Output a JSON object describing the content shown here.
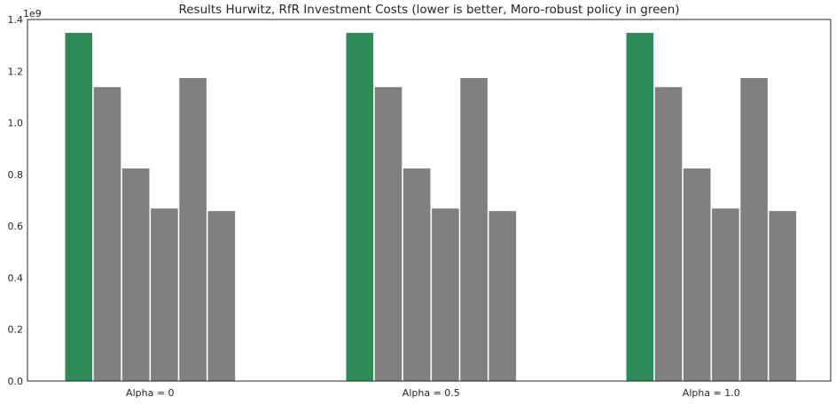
{
  "chart_data": {
    "type": "bar",
    "title": "Results Hurwitz, RfR Investment Costs (lower is better, Moro-robust policy in green)",
    "xlabel": "",
    "ylabel": "",
    "y_offset_label": "1e9",
    "categories": [
      "Alpha = 0",
      "Alpha = 0.5",
      "Alpha = 1.0"
    ],
    "series": [
      {
        "color": "#2e8b57",
        "values": [
          1.35,
          1.35,
          1.35
        ]
      },
      {
        "color": "#808080",
        "values": [
          1.14,
          1.14,
          1.14
        ]
      },
      {
        "color": "#808080",
        "values": [
          0.825,
          0.825,
          0.825
        ]
      },
      {
        "color": "#808080",
        "values": [
          0.67,
          0.67,
          0.67
        ]
      },
      {
        "color": "#808080",
        "values": [
          1.175,
          1.175,
          1.175
        ]
      },
      {
        "color": "#808080",
        "values": [
          0.66,
          0.66,
          0.66
        ]
      }
    ],
    "yticks": [
      "0.0",
      "0.2",
      "0.4",
      "0.6",
      "0.8",
      "1.0",
      "1.2",
      "1.4"
    ],
    "ylim": [
      0,
      1.4
    ],
    "grid": false,
    "legend": "none"
  }
}
